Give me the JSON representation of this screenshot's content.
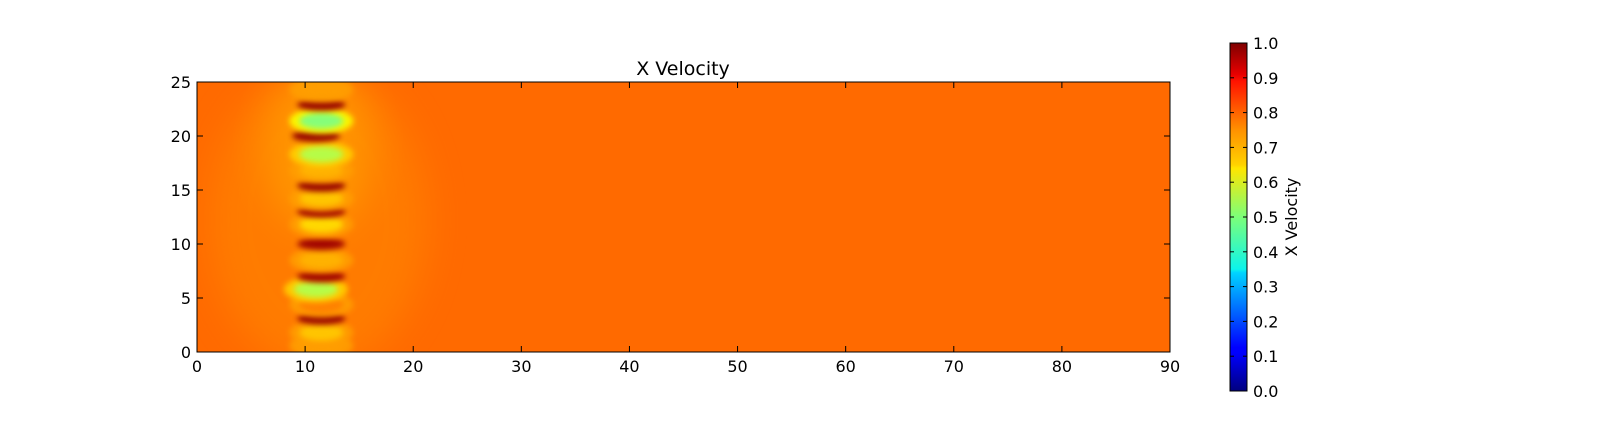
{
  "colors": {
    "background_field": "#ff6a00",
    "colormap": "jet"
  },
  "chart_data": {
    "type": "heatmap",
    "title": "X Velocity",
    "colormap": "jet",
    "xlim": [
      0,
      90
    ],
    "ylim": [
      0,
      25
    ],
    "xticks": [
      "0",
      "10",
      "20",
      "30",
      "40",
      "50",
      "60",
      "70",
      "80",
      "90"
    ],
    "yticks": [
      "0",
      "5",
      "10",
      "15",
      "20",
      "25"
    ],
    "xlabel": "",
    "ylabel": "",
    "grid": false,
    "colorbar": {
      "label": "X Velocity",
      "range": [
        0.0,
        1.0
      ],
      "ticks": [
        "0.0",
        "0.1",
        "0.2",
        "0.3",
        "0.4",
        "0.5",
        "0.6",
        "0.7",
        "0.8",
        "0.9",
        "1.0"
      ]
    },
    "background_value": 0.8,
    "features": [
      {
        "x": 11.5,
        "y": 0.6,
        "value": 0.72
      },
      {
        "x": 11.5,
        "y": 1.8,
        "value": 0.68
      },
      {
        "x": 11.5,
        "y": 3.1,
        "value": 0.98
      },
      {
        "x": 11.5,
        "y": 4.4,
        "value": 0.75
      },
      {
        "x": 11.0,
        "y": 5.8,
        "value": 0.55
      },
      {
        "x": 11.5,
        "y": 7.0,
        "value": 0.97
      },
      {
        "x": 11.5,
        "y": 8.5,
        "value": 0.7
      },
      {
        "x": 11.5,
        "y": 10.0,
        "value": 0.97
      },
      {
        "x": 11.5,
        "y": 11.8,
        "value": 0.66
      },
      {
        "x": 11.5,
        "y": 13.0,
        "value": 0.97
      },
      {
        "x": 11.5,
        "y": 14.2,
        "value": 0.68
      },
      {
        "x": 11.5,
        "y": 15.4,
        "value": 0.98
      },
      {
        "x": 11.5,
        "y": 16.8,
        "value": 0.7
      },
      {
        "x": 11.5,
        "y": 18.3,
        "value": 0.55
      },
      {
        "x": 11.0,
        "y": 20.0,
        "value": 0.98
      },
      {
        "x": 11.5,
        "y": 21.4,
        "value": 0.5
      },
      {
        "x": 11.5,
        "y": 22.9,
        "value": 0.98
      },
      {
        "x": 11.5,
        "y": 24.3,
        "value": 0.72
      }
    ]
  }
}
